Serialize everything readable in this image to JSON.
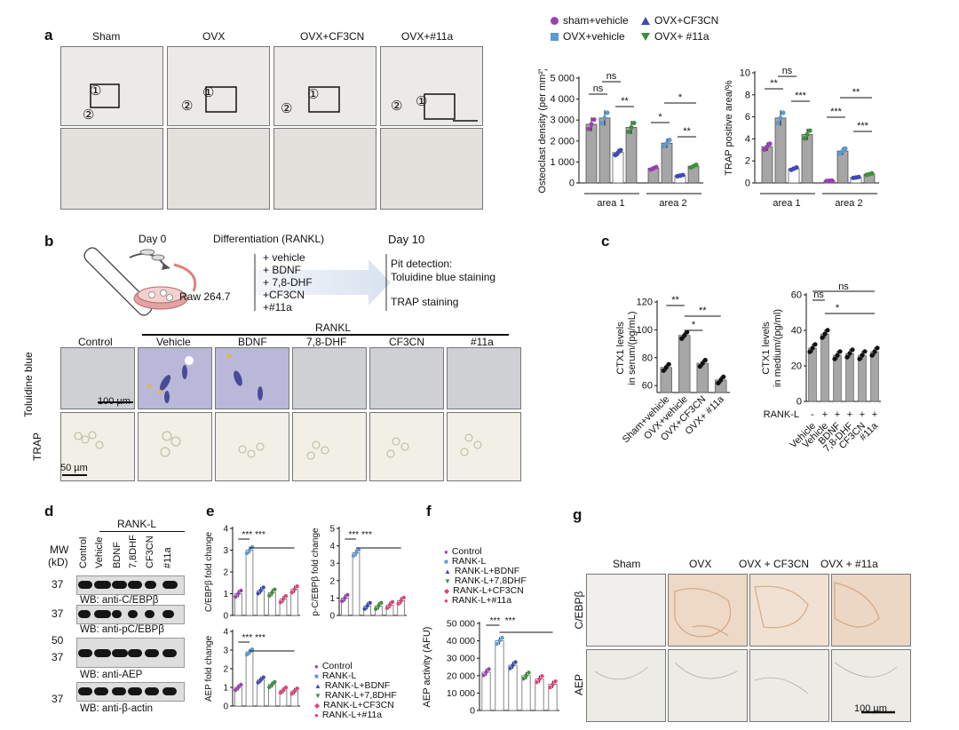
{
  "panel_labels": {
    "a": "a",
    "b": "b",
    "c": "c",
    "d": "d",
    "e": "e",
    "f": "f",
    "g": "g"
  },
  "colors": {
    "bar_gray": "#a6a6a6",
    "sham": "#9b3fb5",
    "ovx": "#5b9bd5",
    "cf3cn": "#3d4bb8",
    "n11a": "#3e8f3e",
    "pink": "#e0447a",
    "red": "#c0392b"
  },
  "panel_a": {
    "columns": [
      "Sham",
      "OVX",
      "OVX+CF3CN",
      "OVX+#11a"
    ],
    "markers": [
      "①",
      "②"
    ],
    "legend": [
      {
        "label": "sham+vehicle",
        "color": "#9b3fb5",
        "shape": "circle"
      },
      {
        "label": "OVX+CF3CN",
        "color": "#3d4bb8",
        "shape": "triangle"
      },
      {
        "label": "OVX+vehicle",
        "color": "#5b9bd5",
        "shape": "square"
      },
      {
        "label": "OVX+ #11a",
        "color": "#3e8f3e",
        "shape": "triangle-down"
      }
    ]
  },
  "panel_b": {
    "day0": "Day 0",
    "differentiation": "Differentiation (RANKL)",
    "day10": "Day 10",
    "cell_line": "Raw 264.7",
    "treatments": [
      "+ vehicle",
      "+ BDNF",
      "+ 7,8-DHF",
      "+CF3CN",
      "+#11a"
    ],
    "detection": [
      "Pit detection:",
      "Toluidine blue staining",
      "TRAP staining"
    ],
    "rankl_header": "RANKL",
    "columns": [
      "Control",
      "Vehicle",
      "BDNF",
      "7,8-DHF",
      "CF3CN",
      "#11a"
    ],
    "rows": [
      "Toluidine blue",
      "TRAP"
    ],
    "scale_100": "100 µm",
    "scale_50": "50 µm"
  },
  "panel_d": {
    "mw_label": "MW",
    "kd_label": "(kD)",
    "rankl_label": "RANK-L",
    "lanes": [
      "Control",
      "Vehicle",
      "BDNF",
      "7,8DHF",
      "CF3CN",
      "#11a"
    ],
    "blots": [
      {
        "mw": "37",
        "caption": "WB: anti-C/EBPβ"
      },
      {
        "mw": "37",
        "caption": "WB: anti-pC/EBPβ"
      },
      {
        "mw": "50 / 37",
        "caption": "WB: anti-AEP"
      },
      {
        "mw": "37",
        "caption": "WB: anti-β-actin"
      }
    ],
    "mw_markers": [
      "37",
      "37",
      "50",
      "37",
      "37"
    ]
  },
  "panel_e_legend": [
    "Control",
    "RANK-L",
    "RANK-L+BDNF",
    "RANK-L+7,8DHF",
    "RANK-L+CF3CN",
    "RANK-L+#11a"
  ],
  "panel_f_legend": [
    "Control",
    "RANK-L",
    "RANK-L+BDNF",
    "RANK-L+7,8DHF",
    "RANK-L+CF3CN",
    "RANK-L+#11a"
  ],
  "panel_g": {
    "columns": [
      "Sham",
      "OVX",
      "OVX + CF3CN",
      "OVX + #11a"
    ],
    "rows": [
      "C/EBPβ",
      "AEP"
    ],
    "scale": "100 µm"
  },
  "chart_data": [
    {
      "id": "osteoclast",
      "type": "bar",
      "ylabel": "Osteoclast density (per mm²)",
      "ylim": [
        0,
        5000
      ],
      "yticks": [
        "0",
        "1 000",
        "2 000",
        "3 000",
        "4 000",
        "5 000"
      ],
      "groups": [
        "area 1",
        "area 2"
      ],
      "series": [
        {
          "name": "sham+vehicle",
          "values": [
            2800,
            700
          ]
        },
        {
          "name": "OVX+vehicle",
          "values": [
            3100,
            1900
          ]
        },
        {
          "name": "OVX+CF3CN",
          "values": [
            1450,
            350
          ]
        },
        {
          "name": "OVX+ #11a",
          "values": [
            2650,
            800
          ]
        }
      ],
      "significance": [
        "ns",
        "ns",
        "**",
        "*",
        "*",
        "**"
      ]
    },
    {
      "id": "trap_area",
      "type": "bar",
      "ylabel": "TRAP positive area/%",
      "ylim": [
        0,
        10
      ],
      "yticks": [
        "0",
        "2",
        "4",
        "6",
        "8",
        "10"
      ],
      "groups": [
        "area 1",
        "area 2"
      ],
      "series": [
        {
          "name": "sham+vehicle",
          "values": [
            3.3,
            0.2
          ]
        },
        {
          "name": "OVX+vehicle",
          "values": [
            5.9,
            2.9
          ]
        },
        {
          "name": "OVX+CF3CN",
          "values": [
            1.3,
            0.5
          ]
        },
        {
          "name": "OVX+ #11a",
          "values": [
            4.4,
            0.8
          ]
        }
      ],
      "significance": [
        "**",
        "ns",
        "***",
        "***",
        "**",
        "***"
      ]
    },
    {
      "id": "ctx1_serum",
      "type": "bar",
      "ylabel": "CTX1 levels in serum/(pg/mL)",
      "ylim": [
        55,
        120
      ],
      "yticks": [
        "60",
        "80",
        "100",
        "120"
      ],
      "categories": [
        "Sham+vehicle",
        "OVX+vehicle",
        "OVX+CF3CN",
        "OVX+ #11a"
      ],
      "values": [
        73,
        96,
        76,
        64
      ],
      "significance": [
        "**",
        "**",
        "*"
      ]
    },
    {
      "id": "ctx1_medium",
      "type": "bar",
      "ylabel": "CTX1 levels in medium/(pg/ml)",
      "ylim": [
        0,
        60
      ],
      "yticks": [
        "0",
        "20",
        "40",
        "60"
      ],
      "categories": [
        "Vehicle",
        "Vehicle",
        "BDNF",
        "7,8-DHF",
        "CF3CN",
        "#11a"
      ],
      "rankl": [
        "-",
        "+",
        "+",
        "+",
        "+",
        "+"
      ],
      "rankl_label": "RANK-L",
      "values": [
        30,
        38,
        26,
        27,
        26,
        28
      ],
      "significance": [
        "ns",
        "ns",
        "*"
      ]
    },
    {
      "id": "cebpb_fold",
      "type": "bar",
      "ylabel": "C/EBPβ fold change",
      "ylim": [
        0,
        4
      ],
      "yticks": [
        "0",
        "1",
        "2",
        "3",
        "4"
      ],
      "categories": [
        "Control",
        "RANK-L",
        "RANK-L+BDNF",
        "RANK-L+7,8DHF",
        "RANK-L+CF3CN",
        "RANK-L+#11a"
      ],
      "values": [
        1.0,
        3.0,
        1.15,
        1.05,
        0.75,
        1.2
      ],
      "significance": [
        "***",
        "***"
      ]
    },
    {
      "id": "pcebpb_fold",
      "type": "bar",
      "ylabel": "p-C/EBPβ fold change",
      "ylim": [
        0,
        5
      ],
      "yticks": [
        "0",
        "1",
        "2",
        "3",
        "4",
        "5"
      ],
      "categories": [
        "Control",
        "RANK-L",
        "RANK-L+BDNF",
        "RANK-L+7,8DHF",
        "RANK-L+CF3CN",
        "RANK-L+#11a"
      ],
      "values": [
        1.0,
        3.6,
        0.55,
        0.55,
        0.6,
        0.85
      ],
      "significance": [
        "***",
        "***"
      ]
    },
    {
      "id": "aep_fold",
      "type": "bar",
      "ylabel": "AEP fold change",
      "ylim": [
        0,
        4
      ],
      "yticks": [
        "0",
        "1",
        "2",
        "3",
        "4"
      ],
      "categories": [
        "Control",
        "RANK-L",
        "RANK-L+BDNF",
        "RANK-L+7,8DHF",
        "RANK-L+CF3CN",
        "RANK-L+#11a"
      ],
      "values": [
        1.0,
        2.9,
        1.4,
        1.15,
        0.85,
        0.8
      ],
      "significance": [
        "***",
        "***"
      ]
    },
    {
      "id": "aep_activity",
      "type": "bar",
      "ylabel": "AEP activity (AFU)",
      "ylim": [
        0,
        50000
      ],
      "yticks": [
        "0",
        "10 000",
        "20 000",
        "30 000",
        "40 000",
        "50 000"
      ],
      "categories": [
        "Control",
        "RANK-L",
        "RANK-L+BDNF",
        "RANK-L+7,8DHF",
        "RANK-L+CF3CN",
        "RANK-L+#11a"
      ],
      "values": [
        22000,
        40000,
        26000,
        20000,
        18000,
        15000
      ],
      "significance": [
        "***",
        "***"
      ]
    }
  ]
}
